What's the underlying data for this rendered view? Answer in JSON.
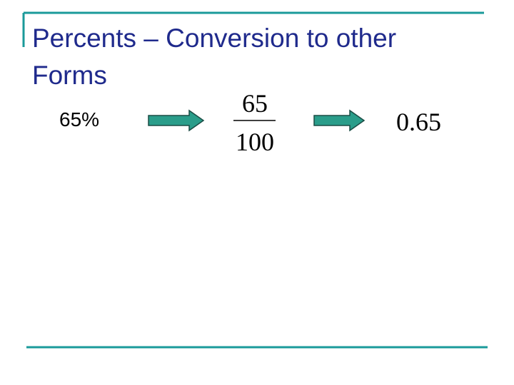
{
  "title": "Percents – Conversion to other Forms",
  "conversion": {
    "percent": "65%",
    "fraction": {
      "numerator": "65",
      "denominator": "100"
    },
    "decimal": "0.65"
  }
}
